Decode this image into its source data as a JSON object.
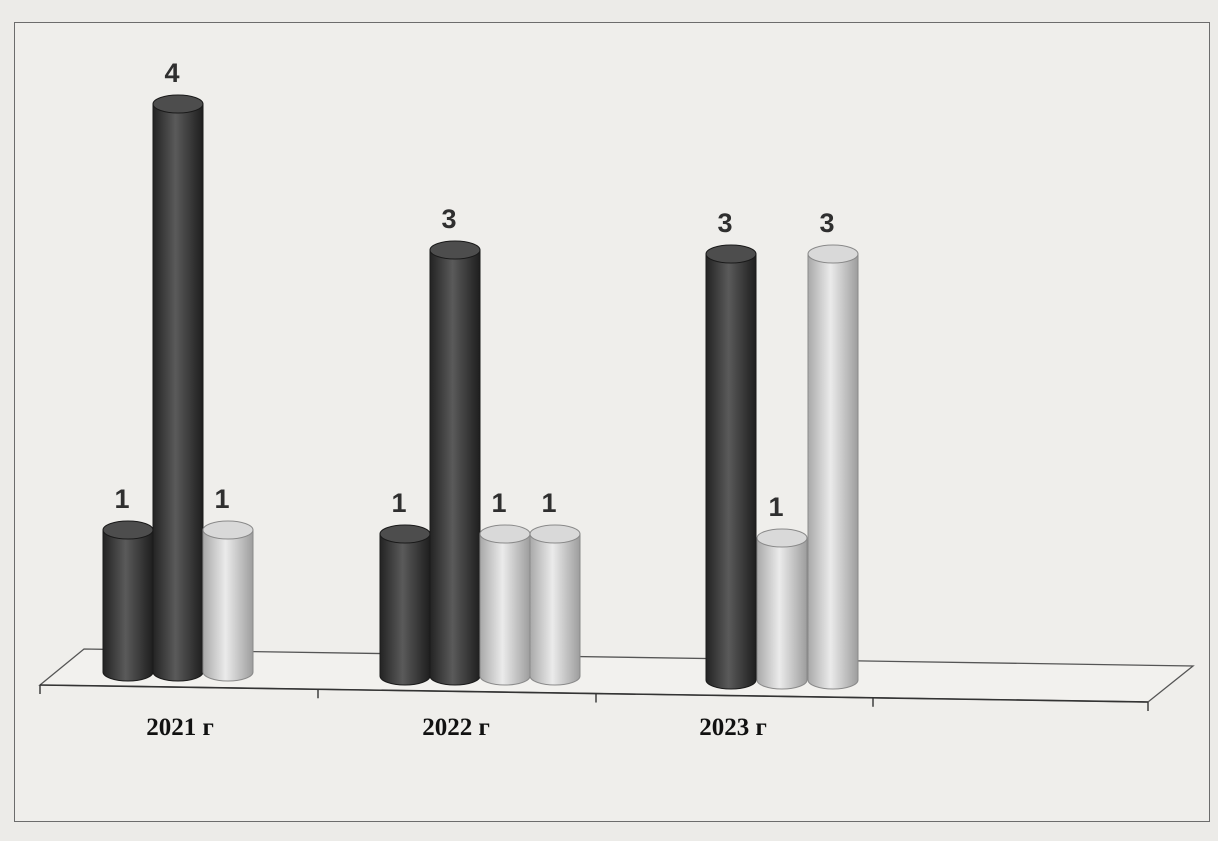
{
  "chart_data": {
    "type": "bar",
    "style": "3d-cylinder",
    "categories": [
      "2021 г",
      "2022 г",
      "2023 г"
    ],
    "bars": [
      [
        {
          "value": 1,
          "color": "#404040"
        },
        {
          "value": 4,
          "color": "#404040"
        },
        {
          "value": 1,
          "color": "#c7c7c7"
        }
      ],
      [
        {
          "value": 1,
          "color": "#404040"
        },
        {
          "value": 3,
          "color": "#404040"
        },
        {
          "value": 1,
          "color": "#c7c7c7"
        },
        {
          "value": 1,
          "color": "#c7c7c7"
        }
      ],
      [
        {
          "value": 3,
          "color": "#404040"
        },
        {
          "value": 1,
          "color": "#c7c7c7"
        },
        {
          "value": 3,
          "color": "#c7c7c7"
        }
      ]
    ],
    "ylim": [
      0,
      4
    ],
    "grid": false,
    "legend": "none",
    "title": "",
    "xlabel": "",
    "ylabel": ""
  }
}
